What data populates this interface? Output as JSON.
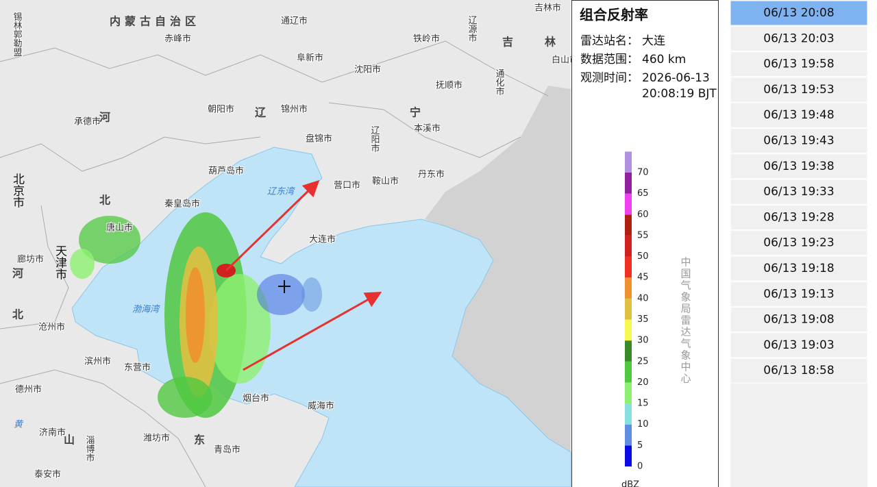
{
  "map": {
    "labels": [
      "锡林郭勒盟",
      "内蒙古自治区",
      "通辽市",
      "辽源市",
      "吉林市",
      "吉",
      "林",
      "白山市",
      "赤峰市",
      "阜新市",
      "铁岭市",
      "沈阳市",
      "通化市",
      "抚顺市",
      "朝阳市",
      "辽",
      "锦州市",
      "宁",
      "承德市",
      "河",
      "本溪市",
      "辽阳市",
      "盘锦市",
      "北京市",
      "葫芦岛市",
      "营口市",
      "鞍山市",
      "丹东市",
      "辽东湾",
      "北",
      "秦皇岛市",
      "唐山市",
      "大连市",
      "天津市",
      "廊坊市",
      "河",
      "渤海湾",
      "北",
      "沧州市",
      "滨州市",
      "东营市",
      "德州市",
      "烟台市",
      "威海市",
      "黄",
      "济南市",
      "淄博市",
      "山",
      "潍坊市",
      "东",
      "青岛市",
      "泰安市"
    ]
  },
  "panel": {
    "title": "组合反射率",
    "rows": [
      {
        "label": "雷达站名：",
        "value": [
          "大连"
        ]
      },
      {
        "label": "数据范围：",
        "value": [
          "460 km"
        ]
      },
      {
        "label": "观测时间：",
        "value": [
          "2026-06-13",
          "20:08:19 BJT"
        ]
      }
    ]
  },
  "legend": {
    "ticks": [
      0,
      5,
      10,
      15,
      20,
      25,
      30,
      35,
      40,
      45,
      50,
      55,
      60,
      65,
      70
    ],
    "colors": [
      "#0a0ae6",
      "#5f8fe0",
      "#86e0e0",
      "#8ef070",
      "#50c840",
      "#3a8a2a",
      "#f8f850",
      "#e0c040",
      "#f09030",
      "#f03020",
      "#d02020",
      "#b02010",
      "#f040f0",
      "#9020a0",
      "#b090e0"
    ],
    "unit": "dBZ",
    "credit": "中国气象局雷达气象中心"
  },
  "time_list": {
    "selected": 0,
    "items": [
      "06/13 20:08",
      "06/13 20:03",
      "06/13 19:58",
      "06/13 19:53",
      "06/13 19:48",
      "06/13 19:43",
      "06/13 19:38",
      "06/13 19:33",
      "06/13 19:28",
      "06/13 19:23",
      "06/13 19:18",
      "06/13 19:13",
      "06/13 19:08",
      "06/13 19:03",
      "06/13 18:58"
    ]
  }
}
